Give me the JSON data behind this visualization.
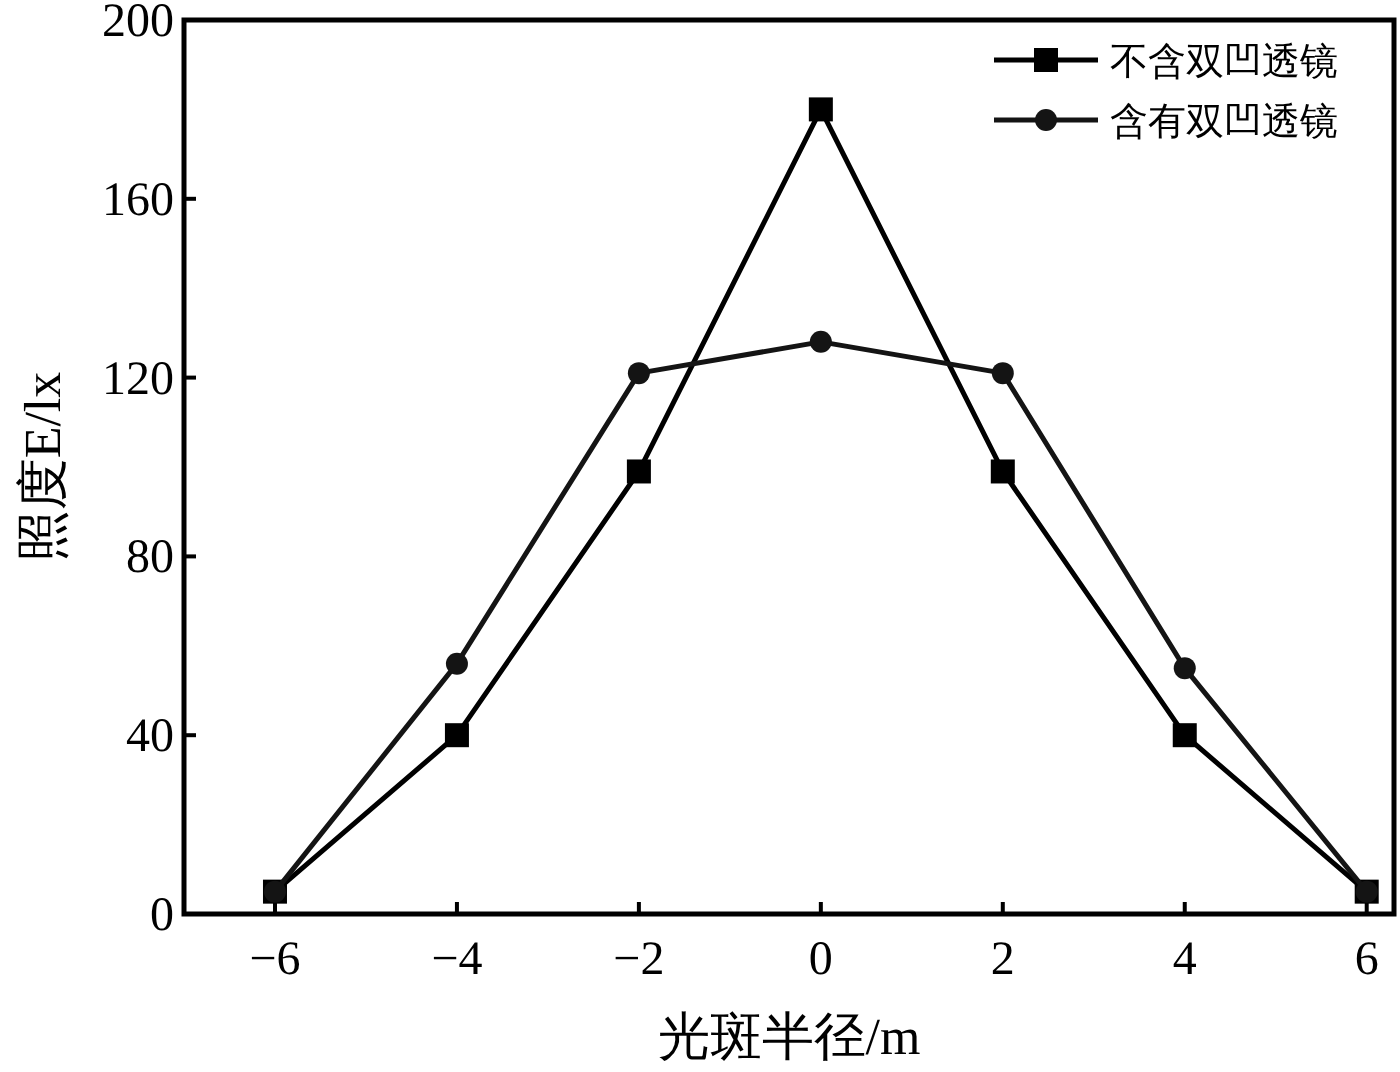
{
  "chart_data": {
    "type": "line",
    "xlabel": "光斑半径/m",
    "ylabel": "照度E/lx",
    "x": [
      -6,
      -4,
      -2,
      0,
      2,
      4,
      6
    ],
    "series": [
      {
        "name": "不含双凹透镜",
        "color": "#000000",
        "marker": "square",
        "values": [
          5,
          40,
          99,
          180,
          99,
          40,
          5
        ]
      },
      {
        "name": "含有双凹透镜",
        "color": "#141414",
        "marker": "circle",
        "values": [
          5,
          56,
          121,
          128,
          121,
          55,
          5
        ]
      }
    ],
    "xlim": [
      -7,
      6.3
    ],
    "ylim": [
      0,
      200
    ],
    "xticks": [
      {
        "value": -6,
        "label": "−6"
      },
      {
        "value": -4,
        "label": "−4"
      },
      {
        "value": -2,
        "label": "−2"
      },
      0,
      2,
      4,
      6
    ],
    "yticks": [
      0,
      40,
      80,
      120,
      160,
      200
    ],
    "grid": false,
    "legend": "top right",
    "line_style": "solid"
  }
}
